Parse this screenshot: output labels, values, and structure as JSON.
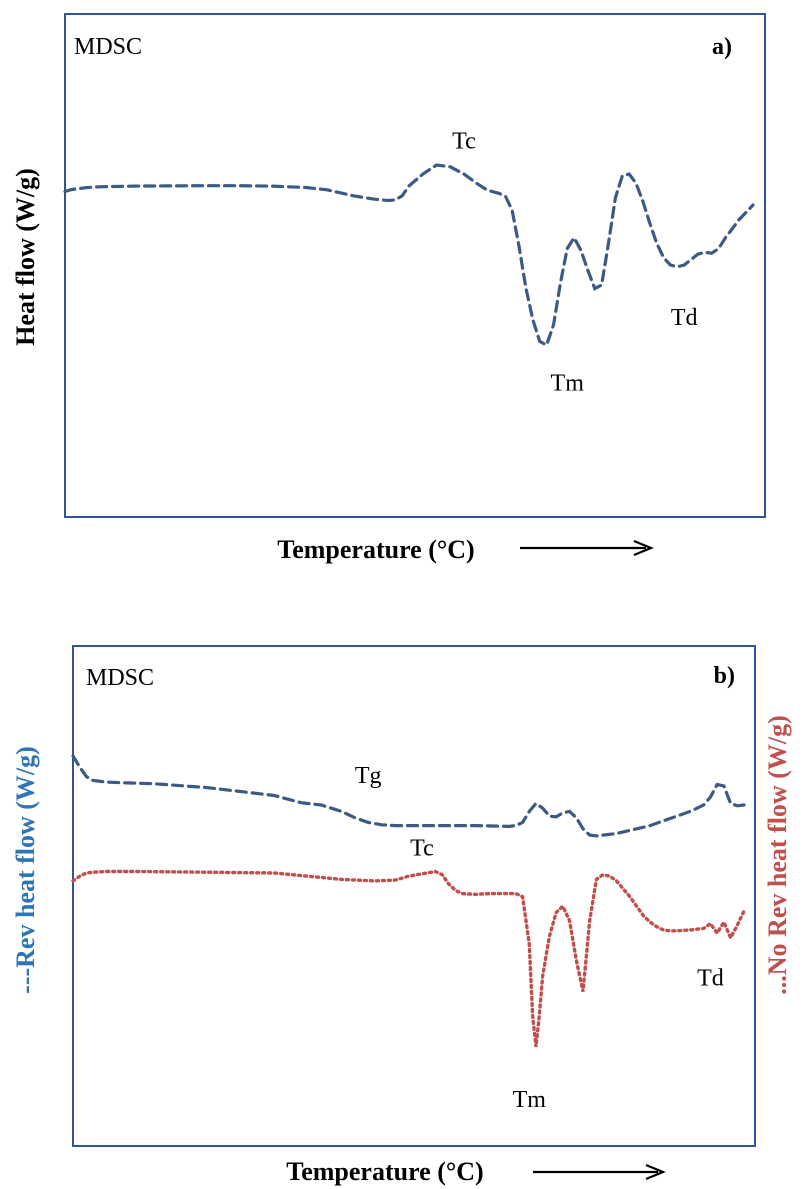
{
  "colors": {
    "rev": "#3c5a83",
    "norev": "#c0504d",
    "frame": "#2f5597",
    "ylabel_rev": "#2e75b6"
  },
  "chart_data": [
    {
      "id": "a",
      "type": "line",
      "corner_text": "MDSC",
      "panel_label": "a)",
      "xlabel": "Temperature (°C)",
      "ylabel": "Heat flow (W/g)",
      "x_is_schematic": true,
      "series": [
        {
          "style": "dashed",
          "color": "#3c5a83",
          "x": [
            0,
            1,
            2,
            3,
            4,
            5,
            7,
            10,
            15,
            20,
            25,
            30,
            35,
            38,
            42,
            45,
            47,
            48,
            49,
            50,
            52,
            54,
            56,
            58,
            60,
            61,
            62,
            63,
            64,
            65,
            66,
            67,
            68,
            69,
            70,
            71,
            72,
            73,
            74,
            75,
            76,
            77,
            78,
            79,
            80,
            81,
            82,
            83,
            84,
            85,
            86,
            87,
            88,
            89,
            90,
            91,
            92,
            93,
            94,
            95,
            96,
            97,
            98,
            99,
            100
          ],
          "y": [
            0.55,
            0.65,
            0.7,
            0.75,
            0.78,
            0.8,
            0.82,
            0.84,
            0.85,
            0.86,
            0.86,
            0.84,
            0.76,
            0.64,
            0.3,
            0.12,
            0.05,
            0.08,
            0.3,
            0.85,
            1.5,
            2.0,
            1.9,
            1.5,
            0.95,
            0.7,
            0.55,
            0.45,
            0.3,
            -0.5,
            -2.5,
            -4.8,
            -6.5,
            -7.7,
            -7.9,
            -6.8,
            -4.5,
            -2.6,
            -2.0,
            -2.7,
            -3.8,
            -4.8,
            -4.6,
            -2.3,
            0.2,
            1.4,
            1.5,
            1.0,
            0.0,
            -1.2,
            -2.3,
            -3.1,
            -3.5,
            -3.6,
            -3.5,
            -3.2,
            -2.9,
            -2.8,
            -2.85,
            -2.6,
            -2.0,
            -1.5,
            -1.0,
            -0.6,
            -0.2
          ]
        }
      ],
      "annotations": [
        {
          "text": "Tc",
          "x": 58,
          "y": 2.9
        },
        {
          "text": "Tm",
          "x": 73,
          "y": -10.4
        },
        {
          "text": "Td",
          "x": 90,
          "y": -6.8
        }
      ]
    },
    {
      "id": "b",
      "type": "line",
      "corner_text": "MDSC",
      "panel_label": "b)",
      "xlabel": "Temperature (°C)",
      "ylabel_left": "---Rev heat flow (W/g)",
      "ylabel_right": "...No Rev heat flow (W/g)",
      "x_is_schematic": true,
      "series": [
        {
          "style": "dashed",
          "color": "#3c5a83",
          "x": [
            0,
            1,
            2,
            3,
            5,
            8,
            12,
            20,
            30,
            34,
            37,
            40,
            42,
            44,
            46,
            48,
            50,
            53,
            56,
            60,
            65,
            66,
            67,
            68,
            69,
            70,
            71,
            72,
            73,
            74,
            75,
            76,
            77,
            78,
            79,
            80,
            81,
            82,
            84,
            86,
            88,
            90,
            92,
            94,
            95,
            96,
            97,
            98,
            99,
            100
          ],
          "y": [
            6.9,
            6.2,
            5.6,
            5.35,
            5.25,
            5.2,
            5.15,
            4.9,
            4.4,
            3.95,
            3.8,
            3.4,
            3.0,
            2.7,
            2.55,
            2.5,
            2.5,
            2.5,
            2.5,
            2.5,
            2.45,
            2.5,
            2.7,
            3.4,
            3.9,
            3.6,
            3.1,
            3.05,
            3.3,
            3.4,
            3.0,
            2.3,
            1.9,
            1.85,
            1.9,
            1.95,
            2.0,
            2.1,
            2.3,
            2.5,
            2.8,
            3.1,
            3.4,
            3.8,
            4.3,
            5.1,
            5.0,
            3.9,
            3.75,
            3.8
          ]
        },
        {
          "style": "dotted",
          "color": "#c0504d",
          "x": [
            0,
            1,
            2,
            3,
            5,
            10,
            20,
            30,
            40,
            45,
            48,
            50,
            52,
            54,
            55,
            56,
            57,
            58,
            60,
            62,
            64,
            66,
            67,
            68,
            68.5,
            69,
            69.5,
            70,
            71,
            72,
            73,
            74,
            75,
            76,
            77,
            78,
            79,
            80,
            81,
            82,
            83,
            84,
            85,
            86,
            87,
            88,
            89,
            90,
            92,
            94,
            95,
            96,
            97,
            98,
            99,
            100
          ],
          "y": [
            -1.0,
            -0.7,
            -0.5,
            -0.45,
            -0.4,
            -0.4,
            -0.45,
            -0.5,
            -0.9,
            -1.0,
            -0.95,
            -0.7,
            -0.55,
            -0.4,
            -0.6,
            -1.2,
            -1.6,
            -1.8,
            -1.85,
            -1.8,
            -1.8,
            -1.8,
            -2.0,
            -5.0,
            -9.5,
            -11.5,
            -9.5,
            -7.0,
            -4.5,
            -3.0,
            -2.6,
            -3.5,
            -6.0,
            -8.0,
            -3.5,
            -0.9,
            -0.6,
            -0.7,
            -1.0,
            -1.5,
            -2.0,
            -2.6,
            -3.2,
            -3.6,
            -3.9,
            -4.1,
            -4.15,
            -4.15,
            -4.1,
            -4.0,
            -3.7,
            -4.3,
            -3.6,
            -4.6,
            -3.8,
            -2.9
          ]
        }
      ],
      "annotations": [
        {
          "text": "Tg",
          "x": 44,
          "y": 5.2
        },
        {
          "text": "Tc",
          "x": 52,
          "y": 0.6
        },
        {
          "text": "Tm",
          "x": 68,
          "y": -15.3
        },
        {
          "text": "Td",
          "x": 95,
          "y": -7.6
        }
      ]
    }
  ]
}
